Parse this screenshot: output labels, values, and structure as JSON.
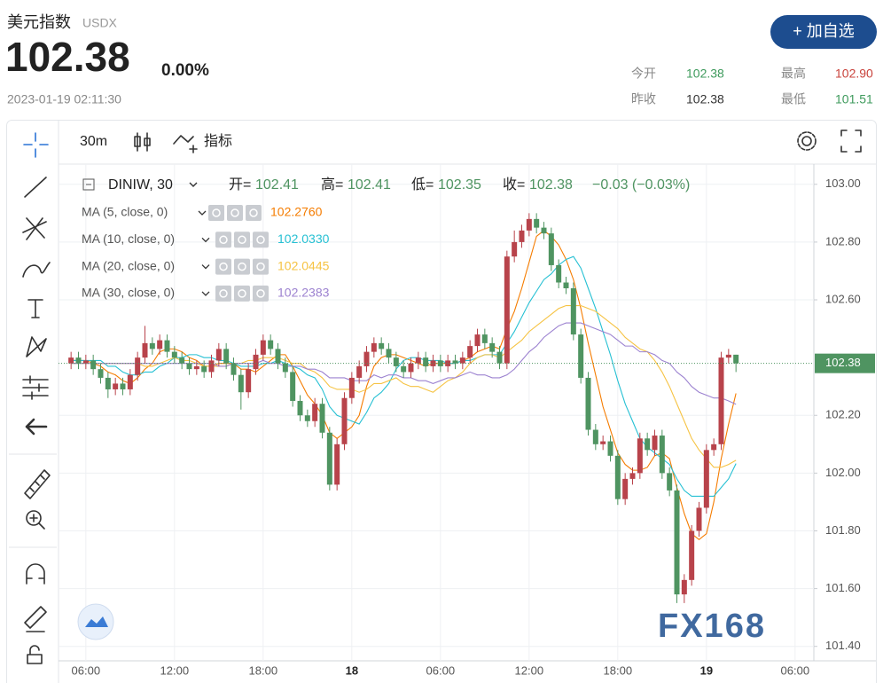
{
  "header": {
    "title": "美元指数",
    "code": "USDX",
    "price": "102.38",
    "change": "0.00%",
    "time": "2023-01-19 02:11:30",
    "button": "+ 加自选",
    "stats": [
      {
        "label": "今开",
        "value": "102.38"
      },
      {
        "label": "最高",
        "value": "102.90"
      },
      {
        "label": "昨收",
        "value": "102.38"
      },
      {
        "label": "最低",
        "value": "101.51"
      }
    ]
  },
  "toolbar": {
    "interval": "30m",
    "indicators": "指标"
  },
  "watermark": "FX168",
  "chart_data": {
    "type": "candlestick",
    "symbol": "DINIW, 30",
    "legend_ohlc": [
      {
        "key": "开=",
        "value": "102.41"
      },
      {
        "key": "高=",
        "value": "102.41"
      },
      {
        "key": "低=",
        "value": "102.35"
      },
      {
        "key": "收=",
        "value": "102.38"
      }
    ],
    "legend_change": "−0.03 (−0.03%)",
    "price_tag": "102.38",
    "up_color": "#b8434b",
    "down_color": "#4f9461",
    "categories": [
      null,
      null,
      "06:00",
      null,
      null,
      null,
      null,
      null,
      null,
      null,
      null,
      null,
      null,
      null,
      "12:00",
      null,
      null,
      null,
      null,
      null,
      null,
      null,
      null,
      null,
      null,
      null,
      "18:00",
      null,
      null,
      null,
      null,
      null,
      null,
      null,
      null,
      null,
      null,
      null,
      "18",
      null,
      null,
      null,
      null,
      null,
      null,
      null,
      null,
      null,
      null,
      null,
      "06:00",
      null,
      null,
      null,
      null,
      null,
      null,
      null,
      null,
      null,
      null,
      null,
      "12:00",
      null,
      null,
      null,
      null,
      null,
      null,
      null,
      null,
      null,
      null,
      null,
      "18:00",
      null,
      null,
      null,
      null,
      null,
      null,
      null,
      null,
      null,
      null,
      null,
      "19",
      null,
      null,
      null,
      null,
      null,
      null,
      null,
      null,
      null,
      null,
      null,
      "06:00"
    ],
    "open": [
      102.38,
      102.4,
      102.38,
      102.39,
      102.36,
      102.33,
      102.29,
      102.31,
      102.29,
      102.34,
      102.4,
      102.45,
      102.43,
      102.46,
      102.42,
      102.4,
      102.38,
      102.36,
      102.37,
      102.35,
      102.39,
      102.43,
      102.38,
      102.34,
      102.28,
      102.36,
      102.41,
      102.46,
      102.43,
      102.38,
      102.35,
      102.25,
      102.2,
      102.18,
      102.24,
      102.14,
      101.96,
      102.1,
      102.26,
      102.33,
      102.37,
      102.42,
      102.45,
      102.43,
      102.4,
      102.37,
      102.35,
      102.38,
      102.4,
      102.37,
      102.39,
      102.37,
      102.39,
      102.38,
      102.4,
      102.44,
      102.48,
      102.45,
      102.42,
      102.38,
      102.75,
      102.8,
      102.84,
      102.88,
      102.85,
      102.83,
      102.72,
      102.66,
      102.64,
      102.48,
      102.33,
      102.15,
      102.1,
      102.11,
      102.06,
      101.91,
      101.98,
      102.0,
      102.12,
      102.08,
      102.13,
      102.0,
      101.94,
      101.58,
      101.63,
      101.8,
      101.88,
      102.08,
      102.1,
      102.4,
      102.41,
      null,
      null,
      null,
      null,
      null,
      null,
      null,
      null
    ],
    "high": [
      102.42,
      102.42,
      102.41,
      102.41,
      102.38,
      102.35,
      102.33,
      102.33,
      102.36,
      102.42,
      102.51,
      102.47,
      102.48,
      102.48,
      102.44,
      102.42,
      102.4,
      102.39,
      102.39,
      102.41,
      102.45,
      102.45,
      102.4,
      102.36,
      102.38,
      102.43,
      102.48,
      102.48,
      102.45,
      102.4,
      102.37,
      102.27,
      102.22,
      102.26,
      102.26,
      102.16,
      102.12,
      102.28,
      102.35,
      102.39,
      102.44,
      102.47,
      102.47,
      102.45,
      102.42,
      102.39,
      102.4,
      102.42,
      102.42,
      102.41,
      102.41,
      102.41,
      102.41,
      102.42,
      102.46,
      102.5,
      102.5,
      102.47,
      102.44,
      102.77,
      102.84,
      102.86,
      102.9,
      102.9,
      102.87,
      102.85,
      102.74,
      102.68,
      102.66,
      102.5,
      102.35,
      102.17,
      102.13,
      102.13,
      102.08,
      102.0,
      102.02,
      102.14,
      102.14,
      102.15,
      102.15,
      102.02,
      101.96,
      101.65,
      101.82,
      101.9,
      102.1,
      102.12,
      102.42,
      102.43,
      102.41,
      null,
      null,
      null,
      null,
      null,
      null,
      null,
      null
    ],
    "low": [
      102.36,
      102.36,
      102.36,
      102.34,
      102.31,
      102.26,
      102.27,
      102.27,
      102.27,
      102.32,
      102.38,
      102.41,
      102.41,
      102.4,
      102.38,
      102.36,
      102.34,
      102.34,
      102.33,
      102.33,
      102.37,
      102.36,
      102.32,
      102.22,
      102.26,
      102.34,
      102.39,
      102.41,
      102.36,
      102.33,
      102.23,
      102.18,
      102.16,
      102.16,
      102.12,
      101.94,
      101.94,
      102.08,
      102.24,
      102.31,
      102.35,
      102.4,
      102.41,
      102.38,
      102.35,
      102.33,
      102.33,
      102.36,
      102.35,
      102.35,
      102.35,
      102.35,
      102.36,
      102.36,
      102.38,
      102.42,
      102.43,
      102.4,
      102.36,
      102.36,
      102.73,
      102.78,
      102.82,
      102.83,
      102.81,
      102.7,
      102.64,
      102.62,
      102.46,
      102.31,
      102.13,
      102.08,
      102.08,
      102.04,
      101.89,
      101.89,
      101.96,
      101.98,
      102.06,
      102.06,
      101.98,
      101.92,
      101.55,
      101.55,
      101.61,
      101.78,
      101.86,
      102.06,
      102.08,
      102.38,
      102.35,
      null,
      null,
      null,
      null,
      null,
      null,
      null,
      null
    ],
    "close": [
      102.4,
      102.38,
      102.39,
      102.36,
      102.33,
      102.29,
      102.31,
      102.29,
      102.34,
      102.4,
      102.45,
      102.43,
      102.46,
      102.42,
      102.4,
      102.38,
      102.36,
      102.37,
      102.35,
      102.39,
      102.43,
      102.38,
      102.34,
      102.28,
      102.36,
      102.41,
      102.46,
      102.43,
      102.38,
      102.35,
      102.25,
      102.2,
      102.18,
      102.24,
      102.14,
      101.96,
      102.1,
      102.26,
      102.33,
      102.37,
      102.42,
      102.45,
      102.43,
      102.4,
      102.37,
      102.35,
      102.38,
      102.4,
      102.37,
      102.39,
      102.37,
      102.39,
      102.38,
      102.4,
      102.44,
      102.48,
      102.45,
      102.42,
      102.38,
      102.75,
      102.8,
      102.84,
      102.88,
      102.85,
      102.83,
      102.72,
      102.66,
      102.64,
      102.48,
      102.33,
      102.15,
      102.1,
      102.11,
      102.06,
      101.91,
      101.98,
      102.0,
      102.12,
      102.08,
      102.13,
      102.0,
      101.94,
      101.58,
      101.63,
      101.8,
      101.88,
      102.08,
      102.1,
      102.4,
      102.41,
      102.38,
      null,
      null,
      null,
      null,
      null,
      null,
      null,
      null
    ],
    "series": [
      {
        "name": "MA (5, close, 0)",
        "color": "#f57c00",
        "value_label": "102.2760",
        "values": [
          102.39,
          102.39,
          102.39,
          102.38,
          102.37,
          102.35,
          102.34,
          102.32,
          102.31,
          102.33,
          102.36,
          102.38,
          102.42,
          102.43,
          102.43,
          102.42,
          102.4,
          102.39,
          102.37,
          102.37,
          102.38,
          102.38,
          102.38,
          102.36,
          102.36,
          102.35,
          102.37,
          102.39,
          102.41,
          102.41,
          102.37,
          102.32,
          102.27,
          102.24,
          102.2,
          102.14,
          102.12,
          102.14,
          102.16,
          102.2,
          102.3,
          102.37,
          102.4,
          102.41,
          102.41,
          102.4,
          102.39,
          102.38,
          102.37,
          102.38,
          102.38,
          102.38,
          102.38,
          102.39,
          102.4,
          102.42,
          102.43,
          102.44,
          102.43,
          102.5,
          102.56,
          102.64,
          102.73,
          102.82,
          102.84,
          102.82,
          102.79,
          102.74,
          102.67,
          102.57,
          102.45,
          102.34,
          102.23,
          102.15,
          102.07,
          102.03,
          102.01,
          102.01,
          102.02,
          102.06,
          102.07,
          102.05,
          101.95,
          101.86,
          101.79,
          101.77,
          101.79,
          101.9,
          102.05,
          102.17,
          102.276,
          null,
          null,
          null,
          null,
          null,
          null,
          null,
          null
        ]
      },
      {
        "name": "MA (10, close, 0)",
        "color": "#26c0d3",
        "value_label": "102.0330",
        "values": [
          102.39,
          102.39,
          102.39,
          102.39,
          102.39,
          102.37,
          102.37,
          102.35,
          102.34,
          102.34,
          102.35,
          102.35,
          102.37,
          102.38,
          102.4,
          102.4,
          102.41,
          102.41,
          102.4,
          102.4,
          102.39,
          102.39,
          102.38,
          102.37,
          102.37,
          102.37,
          102.38,
          102.38,
          102.39,
          102.38,
          102.37,
          102.36,
          102.34,
          102.33,
          102.29,
          102.23,
          102.2,
          102.19,
          102.18,
          102.17,
          102.21,
          102.26,
          102.28,
          102.31,
          102.36,
          102.39,
          102.4,
          102.4,
          102.39,
          102.39,
          102.39,
          102.38,
          102.38,
          102.39,
          102.39,
          102.4,
          102.41,
          102.41,
          102.41,
          102.45,
          102.49,
          102.54,
          102.59,
          102.63,
          102.67,
          102.69,
          102.72,
          102.74,
          102.75,
          102.71,
          102.64,
          102.57,
          102.49,
          102.41,
          102.32,
          102.24,
          102.18,
          102.12,
          102.09,
          102.07,
          102.05,
          102.03,
          101.98,
          101.94,
          101.92,
          101.92,
          101.92,
          101.92,
          101.95,
          101.98,
          102.033,
          null,
          null,
          null,
          null,
          null,
          null,
          null,
          null
        ]
      },
      {
        "name": "MA (20, close, 0)",
        "color": "#f6c343",
        "value_label": "102.0445",
        "values": [
          102.38,
          102.38,
          102.38,
          102.38,
          102.38,
          102.38,
          102.38,
          102.38,
          102.38,
          102.38,
          102.37,
          102.37,
          102.38,
          102.39,
          102.4,
          102.39,
          102.39,
          102.38,
          102.37,
          102.37,
          102.37,
          102.37,
          102.38,
          102.38,
          102.39,
          102.39,
          102.4,
          102.4,
          102.4,
          102.39,
          102.38,
          102.38,
          102.36,
          102.35,
          102.33,
          102.3,
          102.29,
          102.29,
          102.29,
          102.28,
          102.29,
          102.31,
          102.31,
          102.32,
          102.33,
          102.31,
          102.3,
          102.3,
          102.29,
          102.28,
          102.3,
          102.32,
          102.33,
          102.35,
          102.38,
          102.4,
          102.41,
          102.41,
          102.4,
          102.42,
          102.44,
          102.46,
          102.49,
          102.51,
          102.53,
          102.55,
          102.57,
          102.58,
          102.58,
          102.58,
          102.57,
          102.56,
          102.54,
          102.52,
          102.5,
          102.47,
          102.45,
          102.43,
          102.42,
          102.39,
          102.35,
          102.3,
          102.24,
          102.18,
          102.12,
          102.08,
          102.05,
          102.02,
          102.02,
          102.03,
          102.0445,
          null,
          null,
          null,
          null,
          null,
          null,
          null,
          null
        ]
      },
      {
        "name": "MA (30, close, 0)",
        "color": "#9c82d0",
        "value_label": "102.2383",
        "values": [
          102.38,
          102.38,
          102.38,
          102.38,
          102.38,
          102.38,
          102.38,
          102.38,
          102.38,
          102.38,
          102.38,
          102.38,
          102.38,
          102.38,
          102.38,
          102.38,
          102.38,
          102.38,
          102.38,
          102.38,
          102.37,
          102.37,
          102.38,
          102.38,
          102.38,
          102.38,
          102.39,
          102.38,
          102.38,
          102.37,
          102.37,
          102.37,
          102.36,
          102.36,
          102.35,
          102.33,
          102.33,
          102.33,
          102.32,
          102.32,
          102.32,
          102.34,
          102.33,
          102.34,
          102.34,
          102.33,
          102.33,
          102.32,
          102.32,
          102.31,
          102.32,
          102.33,
          102.33,
          102.34,
          102.35,
          102.34,
          102.34,
          102.33,
          102.33,
          102.34,
          102.36,
          102.39,
          102.42,
          102.44,
          102.47,
          102.49,
          102.51,
          102.52,
          102.52,
          102.52,
          102.51,
          102.5,
          102.49,
          102.48,
          102.46,
          102.44,
          102.44,
          102.42,
          102.42,
          102.41,
          102.39,
          102.38,
          102.35,
          102.33,
          102.3,
          102.28,
          102.27,
          102.26,
          102.26,
          102.25,
          102.2383,
          null,
          null,
          null,
          null,
          null,
          null,
          null,
          null
        ]
      }
    ],
    "ylim": [
      101.35,
      103.07
    ],
    "yticks": [
      {
        "value": 103,
        "label": "103.00"
      },
      {
        "value": 102.8,
        "label": "102.80"
      },
      {
        "value": 102.6,
        "label": "102.60"
      },
      {
        "value": 102.2,
        "label": "102.20"
      },
      {
        "value": 102,
        "label": "102.00"
      },
      {
        "value": 101.8,
        "label": "101.80"
      },
      {
        "value": 101.6,
        "label": "101.60"
      },
      {
        "value": 101.4,
        "label": "101.40"
      }
    ],
    "grid": true
  }
}
